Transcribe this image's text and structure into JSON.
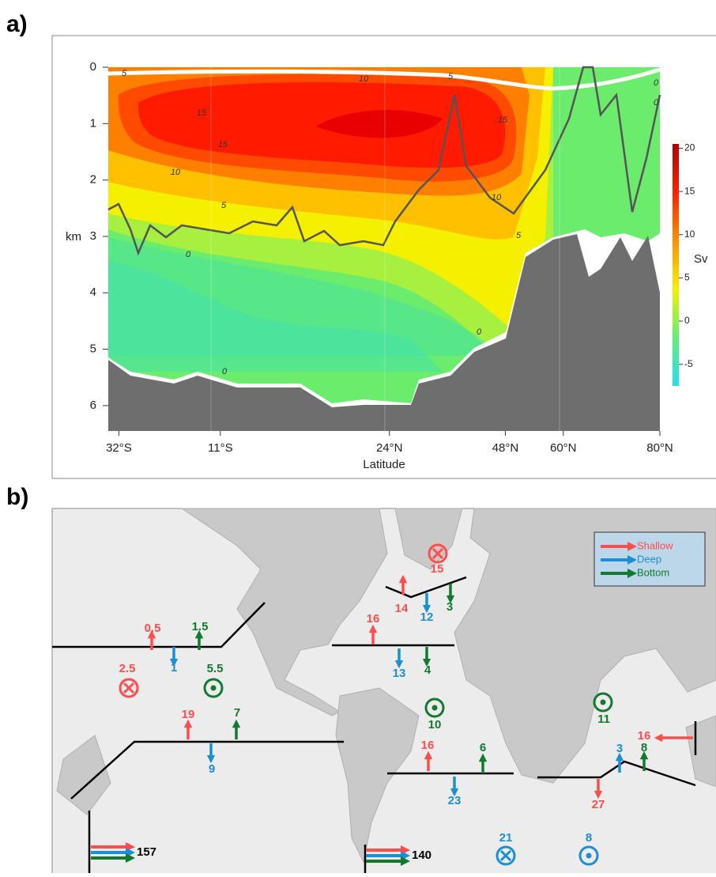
{
  "panel_a": {
    "label": "a)",
    "y_label": "km",
    "x_label": "Latitude",
    "colorbar_label": "Sv",
    "ylim": [
      0,
      6.45
    ],
    "yticks": [
      0,
      1,
      2,
      3,
      4,
      5,
      6
    ],
    "xlim": [
      -34.2,
      80
    ],
    "xticks": [
      {
        "value": -32,
        "label": "32°S"
      },
      {
        "value": -11,
        "label": "11°S"
      },
      {
        "value": 24,
        "label": "24°N"
      },
      {
        "value": 48,
        "label": "48°N"
      },
      {
        "value": 60,
        "label": "60°N"
      },
      {
        "value": 80,
        "label": "80°N"
      }
    ],
    "clim": [
      -7.5,
      20.5
    ],
    "cticks": [
      20,
      15,
      10,
      5,
      0,
      -5
    ],
    "contour_labels": [
      5,
      10,
      5,
      15,
      15,
      10,
      5,
      0,
      0,
      15,
      10,
      5,
      0,
      0,
      0
    ]
  },
  "panel_b": {
    "label": "b)",
    "legend": [
      {
        "name": "Shallow",
        "color": "#ff4d4d"
      },
      {
        "name": "Deep",
        "color": "#1a8fd6"
      },
      {
        "name": "Bottom",
        "color": "#127a2e"
      }
    ],
    "transports": [
      {
        "value": 0.5,
        "layer": "Shallow"
      },
      {
        "value": 1.5,
        "layer": "Bottom"
      },
      {
        "value": 1,
        "layer": "Deep"
      },
      {
        "value": 2.5,
        "layer": "Shallow"
      },
      {
        "value": 5.5,
        "layer": "Bottom"
      },
      {
        "value": 19,
        "layer": "Shallow"
      },
      {
        "value": 7,
        "layer": "Bottom"
      },
      {
        "value": 9,
        "layer": "Deep"
      },
      {
        "value": 16,
        "layer": "Shallow"
      },
      {
        "value": 13,
        "layer": "Deep"
      },
      {
        "value": 4,
        "layer": "Bottom"
      },
      {
        "value": 14,
        "layer": "Shallow"
      },
      {
        "value": 12,
        "layer": "Deep"
      },
      {
        "value": 3,
        "layer": "Bottom"
      },
      {
        "value": 15,
        "layer": "Shallow"
      },
      {
        "value": 10,
        "layer": "Bottom"
      },
      {
        "value": 16,
        "layer": "Shallow"
      },
      {
        "value": 6,
        "layer": "Bottom"
      },
      {
        "value": 23,
        "layer": "Deep"
      },
      {
        "value": 11,
        "layer": "Bottom"
      },
      {
        "value": 3,
        "layer": "Deep"
      },
      {
        "value": 8,
        "layer": "Bottom"
      },
      {
        "value": 16,
        "layer": "Shallow"
      },
      {
        "value": 27,
        "layer": "Shallow"
      },
      {
        "value": 21,
        "layer": "Deep"
      },
      {
        "value": 8,
        "layer": "Deep"
      }
    ],
    "totals": [
      157,
      140
    ]
  }
}
